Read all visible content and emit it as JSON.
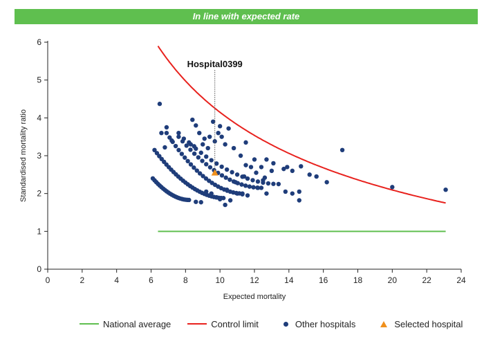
{
  "banner": {
    "text": "In line with expected rate",
    "color": "#5fbf4f"
  },
  "chart_data": {
    "type": "scatter",
    "xlabel": "Expected mortality",
    "ylabel": "Standardised mortality ratio",
    "xlim": [
      0,
      24
    ],
    "ylim": [
      0,
      6
    ],
    "xticks": [
      0,
      2,
      4,
      6,
      8,
      10,
      12,
      14,
      16,
      18,
      20,
      22,
      24
    ],
    "yticks": [
      0,
      1,
      2,
      3,
      4,
      5,
      6
    ],
    "national_average": {
      "name": "National average",
      "color": "#5fbf4f",
      "y": 1,
      "x_range": [
        6.4,
        23.1
      ]
    },
    "control_limit": {
      "name": "Control limit",
      "color": "#e8211d",
      "x_range": [
        6.4,
        23.1
      ],
      "y_at_start": 5.9,
      "y_at_end": 1.75
    },
    "selected_hospital": {
      "name": "Selected hospital",
      "label": "Hospital0399",
      "x": 9.7,
      "y": 2.55,
      "color": "#f0901c"
    },
    "other_hospitals": {
      "name": "Other hospitals",
      "color": "#1f3d7a",
      "bands": [
        {
          "x_start": 6.1,
          "x_end": 8.2,
          "y_start": 2.4,
          "y_end": 1.83,
          "count": 22
        },
        {
          "x_start": 6.2,
          "x_end": 10.2,
          "y_start": 3.15,
          "y_end": 1.88,
          "count": 30
        },
        {
          "x_start": 6.9,
          "x_end": 11.3,
          "y_start": 3.6,
          "y_end": 2.0,
          "count": 26
        },
        {
          "x_start": 7.6,
          "x_end": 12.4,
          "y_start": 3.5,
          "y_end": 2.15,
          "count": 22
        },
        {
          "x_start": 8.3,
          "x_end": 13.4,
          "y_start": 3.3,
          "y_end": 2.25,
          "count": 18
        }
      ],
      "points": [
        [
          6.5,
          4.37
        ],
        [
          8.4,
          3.95
        ],
        [
          9.6,
          3.9
        ],
        [
          10.0,
          3.78
        ],
        [
          10.5,
          3.72
        ],
        [
          8.6,
          3.8
        ],
        [
          6.6,
          3.6
        ],
        [
          6.9,
          3.75
        ],
        [
          7.6,
          3.6
        ],
        [
          7.9,
          3.45
        ],
        [
          8.8,
          3.6
        ],
        [
          9.1,
          3.45
        ],
        [
          9.4,
          3.5
        ],
        [
          9.9,
          3.6
        ],
        [
          10.1,
          3.5
        ],
        [
          7.2,
          3.4
        ],
        [
          6.8,
          3.22
        ],
        [
          8.2,
          3.35
        ],
        [
          8.5,
          3.25
        ],
        [
          9.0,
          3.3
        ],
        [
          9.3,
          3.2
        ],
        [
          9.7,
          3.38
        ],
        [
          10.3,
          3.3
        ],
        [
          10.8,
          3.2
        ],
        [
          11.5,
          3.35
        ],
        [
          11.2,
          3.0
        ],
        [
          11.5,
          2.75
        ],
        [
          11.8,
          2.7
        ],
        [
          12.0,
          2.9
        ],
        [
          12.1,
          2.55
        ],
        [
          12.4,
          2.7
        ],
        [
          12.7,
          2.9
        ],
        [
          12.5,
          2.35
        ],
        [
          13.0,
          2.6
        ],
        [
          13.1,
          2.8
        ],
        [
          13.7,
          2.65
        ],
        [
          13.9,
          2.7
        ],
        [
          14.2,
          2.6
        ],
        [
          14.7,
          2.72
        ],
        [
          15.2,
          2.5
        ],
        [
          15.6,
          2.45
        ],
        [
          16.2,
          2.3
        ],
        [
          17.1,
          3.15
        ],
        [
          20.0,
          2.17
        ],
        [
          23.1,
          2.1
        ],
        [
          11.0,
          2.0
        ],
        [
          11.3,
          1.98
        ],
        [
          11.6,
          1.95
        ],
        [
          12.7,
          2.0
        ],
        [
          12.2,
          2.15
        ],
        [
          12.6,
          2.42
        ],
        [
          13.8,
          2.05
        ],
        [
          14.2,
          2.0
        ],
        [
          14.6,
          2.05
        ],
        [
          14.6,
          1.82
        ],
        [
          10.3,
          1.7
        ],
        [
          10.6,
          1.82
        ],
        [
          8.6,
          1.78
        ],
        [
          8.9,
          1.77
        ],
        [
          10.4,
          2.1
        ],
        [
          10.9,
          2.3
        ],
        [
          11.4,
          2.45
        ],
        [
          9.2,
          2.05
        ],
        [
          9.5,
          2.0
        ],
        [
          9.8,
          1.9
        ],
        [
          10.0,
          1.85
        ]
      ]
    }
  },
  "legend": [
    {
      "label": "National average",
      "swatch": "line",
      "color": "#5fbf4f"
    },
    {
      "label": "Control limit",
      "swatch": "line",
      "color": "#e8211d"
    },
    {
      "label": "Other hospitals",
      "swatch": "dot",
      "color": "#1f3d7a"
    },
    {
      "label": "Selected hospital",
      "swatch": "triangle",
      "color": "#f0901c"
    }
  ]
}
